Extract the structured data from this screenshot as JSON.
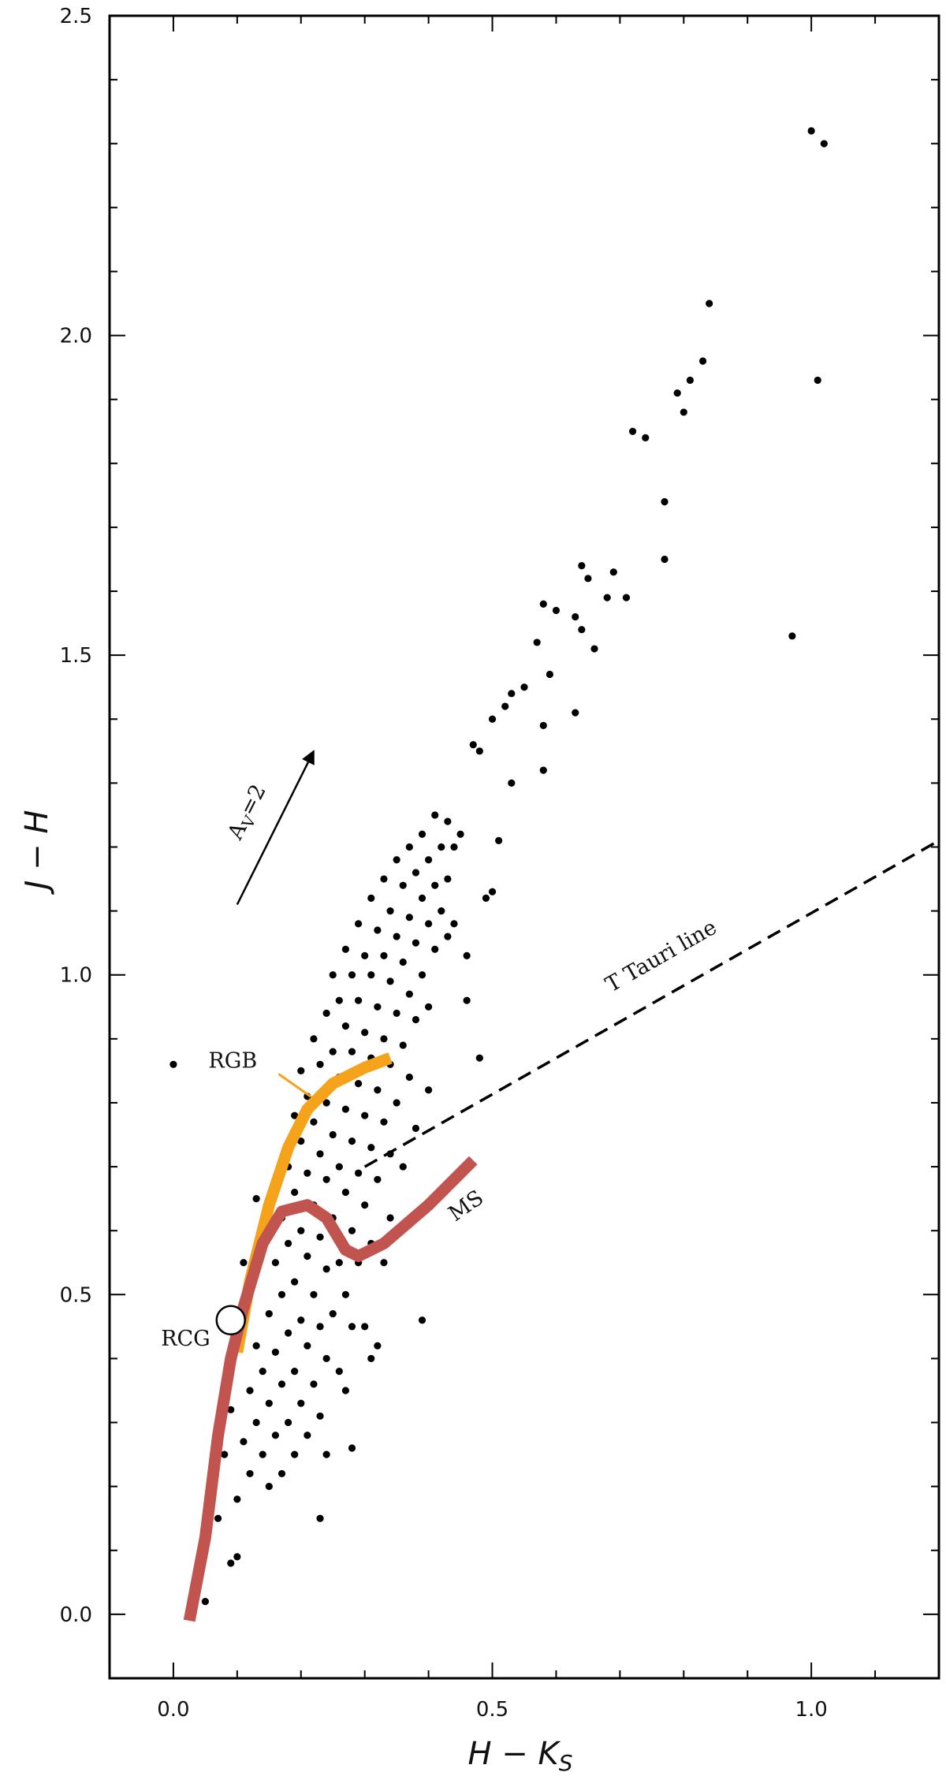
{
  "chart_data": {
    "type": "scatter",
    "xlabel": "H − K",
    "xlabel_sub": "S",
    "ylabel": "J − H",
    "xlim": [
      -0.1,
      1.2
    ],
    "ylim": [
      -0.1,
      2.5
    ],
    "xticks": [
      {
        "value": 0,
        "label": "0.0"
      },
      {
        "value": 0.5,
        "label": "0.5"
      },
      {
        "value": 1,
        "label": "1.0"
      }
    ],
    "yticks": [
      {
        "value": 0,
        "label": "0.0"
      },
      {
        "value": 0.5,
        "label": "0.5"
      },
      {
        "value": 1,
        "label": "1.0"
      },
      {
        "value": 1.5,
        "label": "1.5"
      },
      {
        "value": 2,
        "label": "2.0"
      },
      {
        "value": 2.5,
        "label": "2.5"
      }
    ],
    "xticks_minor": [
      -0.1,
      0.1,
      0.2,
      0.3,
      0.4,
      0.6,
      0.7,
      0.8,
      0.9,
      1.1,
      1.2
    ],
    "yticks_minor": [
      -0.1,
      0.1,
      0.2,
      0.3,
      0.4,
      0.6,
      0.7,
      0.8,
      0.9,
      1.1,
      1.2,
      1.3,
      1.4,
      1.6,
      1.7,
      1.8,
      1.9,
      2.1,
      2.2,
      2.3,
      2.4
    ],
    "color": "#000000",
    "x": [
      1.0,
      1.02,
      0.84,
      1.01,
      0.83,
      0.81,
      0.79,
      0.8,
      0.72,
      0.74,
      0.77,
      0.77,
      0.97,
      0.64,
      0.65,
      0.69,
      0.68,
      0.71,
      0.58,
      0.6,
      0.63,
      0.64,
      0.66,
      0.57,
      0.59,
      0.63,
      0.58,
      0.58,
      0.55,
      0.53,
      0.52,
      0.5,
      0.48,
      0.47,
      0.53,
      0.0,
      0.39,
      0.28,
      0.23,
      0.32,
      0.31,
      0.05,
      0.1,
      0.09,
      0.49,
      0.43,
      0.46,
      0.46,
      0.48,
      0.51,
      0.5,
      0.45,
      0.44,
      0.08,
      0.09,
      0.1,
      0.11,
      0.12,
      0.12,
      0.13,
      0.13,
      0.14,
      0.14,
      0.15,
      0.15,
      0.15,
      0.16,
      0.16,
      0.16,
      0.17,
      0.17,
      0.17,
      0.17,
      0.18,
      0.18,
      0.18,
      0.18,
      0.19,
      0.19,
      0.19,
      0.19,
      0.19,
      0.2,
      0.2,
      0.2,
      0.2,
      0.2,
      0.21,
      0.21,
      0.21,
      0.21,
      0.21,
      0.22,
      0.22,
      0.22,
      0.22,
      0.22,
      0.23,
      0.23,
      0.23,
      0.23,
      0.23,
      0.24,
      0.24,
      0.24,
      0.24,
      0.24,
      0.25,
      0.25,
      0.25,
      0.25,
      0.25,
      0.26,
      0.26,
      0.26,
      0.26,
      0.26,
      0.27,
      0.27,
      0.27,
      0.27,
      0.27,
      0.28,
      0.28,
      0.28,
      0.28,
      0.28,
      0.29,
      0.29,
      0.29,
      0.29,
      0.29,
      0.3,
      0.3,
      0.3,
      0.3,
      0.31,
      0.31,
      0.31,
      0.31,
      0.31,
      0.32,
      0.32,
      0.32,
      0.32,
      0.33,
      0.33,
      0.33,
      0.33,
      0.34,
      0.34,
      0.34,
      0.34,
      0.35,
      0.35,
      0.35,
      0.35,
      0.36,
      0.36,
      0.36,
      0.37,
      0.37,
      0.37,
      0.37,
      0.38,
      0.38,
      0.38,
      0.39,
      0.39,
      0.39,
      0.4,
      0.4,
      0.4,
      0.41,
      0.41,
      0.41,
      0.42,
      0.42,
      0.43,
      0.43,
      0.44,
      0.07,
      0.06,
      0.05,
      0.09,
      0.11,
      0.13,
      0.15,
      0.24,
      0.27,
      0.3,
      0.33,
      0.36,
      0.4,
      0.34,
      0.38
    ],
    "y": [
      2.32,
      2.3,
      2.05,
      1.93,
      1.96,
      1.93,
      1.91,
      1.88,
      1.85,
      1.84,
      1.74,
      1.65,
      1.53,
      1.64,
      1.62,
      1.63,
      1.59,
      1.59,
      1.58,
      1.57,
      1.56,
      1.54,
      1.51,
      1.52,
      1.47,
      1.41,
      1.39,
      1.32,
      1.45,
      1.44,
      1.42,
      1.4,
      1.35,
      1.36,
      1.3,
      0.86,
      0.46,
      0.26,
      0.15,
      0.42,
      0.4,
      0.02,
      0.09,
      0.08,
      1.12,
      1.06,
      1.03,
      0.96,
      0.87,
      1.21,
      1.13,
      1.22,
      1.2,
      0.25,
      0.32,
      0.18,
      0.27,
      0.35,
      0.22,
      0.3,
      0.42,
      0.25,
      0.38,
      0.2,
      0.33,
      0.47,
      0.28,
      0.41,
      0.55,
      0.22,
      0.36,
      0.5,
      0.62,
      0.3,
      0.44,
      0.58,
      0.7,
      0.25,
      0.38,
      0.52,
      0.66,
      0.78,
      0.33,
      0.46,
      0.6,
      0.74,
      0.85,
      0.28,
      0.42,
      0.56,
      0.69,
      0.81,
      0.36,
      0.5,
      0.64,
      0.77,
      0.9,
      0.31,
      0.45,
      0.59,
      0.72,
      0.86,
      0.4,
      0.54,
      0.68,
      0.8,
      0.94,
      0.47,
      0.62,
      0.75,
      0.88,
      1.0,
      0.38,
      0.55,
      0.7,
      0.84,
      0.96,
      0.5,
      0.66,
      0.79,
      0.92,
      1.04,
      0.45,
      0.6,
      0.74,
      0.88,
      1.0,
      0.55,
      0.69,
      0.83,
      0.96,
      1.08,
      0.64,
      0.78,
      0.91,
      1.03,
      0.58,
      0.73,
      0.87,
      1.0,
      1.12,
      0.68,
      0.82,
      0.95,
      1.07,
      0.77,
      0.9,
      1.03,
      1.15,
      0.72,
      0.86,
      0.99,
      1.1,
      0.8,
      0.94,
      1.06,
      1.18,
      0.89,
      1.02,
      1.14,
      0.84,
      0.97,
      1.09,
      1.2,
      0.93,
      1.05,
      1.16,
      1.0,
      1.12,
      1.22,
      0.95,
      1.08,
      1.18,
      1.04,
      1.14,
      1.25,
      1.1,
      1.2,
      1.15,
      1.24,
      1.08,
      0.15,
      0.2,
      0.12,
      0.45,
      0.55,
      0.65,
      0.6,
      0.25,
      0.35,
      0.45,
      0.55,
      0.7,
      0.82,
      0.62,
      0.76
    ],
    "curves": [
      {
        "name": "RGB",
        "color": "#f5a31a",
        "x": [
          0.1,
          0.12,
          0.15,
          0.18,
          0.21,
          0.25,
          0.3,
          0.34
        ],
        "y": [
          0.41,
          0.52,
          0.64,
          0.73,
          0.79,
          0.83,
          0.855,
          0.87
        ]
      },
      {
        "name": "MS",
        "color": "#c25450",
        "x": [
          0.025,
          0.05,
          0.07,
          0.09,
          0.11,
          0.14,
          0.17,
          0.21,
          0.24,
          0.27,
          0.29,
          0.33,
          0.4,
          0.47
        ],
        "y": [
          -0.01,
          0.12,
          0.28,
          0.4,
          0.48,
          0.58,
          0.63,
          0.64,
          0.62,
          0.57,
          0.56,
          0.58,
          0.64,
          0.71
        ]
      },
      {
        "name": "T Tauri line",
        "color": "#000000",
        "dashed": true,
        "x": [
          0.3,
          1.2
        ],
        "y": [
          0.7,
          1.21
        ]
      }
    ],
    "rcg": {
      "label": "RCG",
      "x": 0.09,
      "y": 0.46
    },
    "vector": {
      "label": "A",
      "label_sub": "V",
      "label_tail": "=2",
      "x": [
        0.1,
        0.22
      ],
      "y": [
        1.11,
        1.35
      ]
    }
  }
}
